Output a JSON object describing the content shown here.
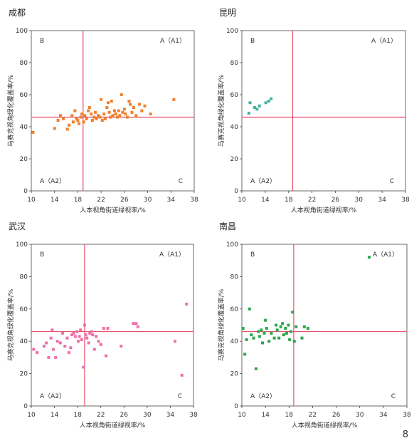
{
  "page_number": "8",
  "chart_data": [
    {
      "type": "scatter",
      "title": "成都",
      "xlabel": "人本视角街道绿视率/%",
      "ylabel": "马赛克视角绿化覆盖率/%",
      "xlim": [
        10,
        38
      ],
      "ylim": [
        0,
        100
      ],
      "xticks": [
        "10",
        "14",
        "18",
        "22",
        "26",
        "30",
        "34",
        "38"
      ],
      "yticks": [
        "0",
        "20",
        "40",
        "60",
        "80",
        "100"
      ],
      "color": "#f07f2a",
      "vline": 18.9,
      "hline": 46,
      "quadrant_labels": {
        "top_left": "B",
        "top_right": "A（A1）",
        "bottom_left": "A（A2）",
        "bottom_right": "C"
      },
      "points": [
        [
          10.3,
          36.5
        ],
        [
          14.0,
          39
        ],
        [
          14.6,
          44
        ],
        [
          15,
          47
        ],
        [
          15.5,
          45
        ],
        [
          16.2,
          38.5
        ],
        [
          16.5,
          41
        ],
        [
          17,
          47
        ],
        [
          17.2,
          43
        ],
        [
          17.5,
          50
        ],
        [
          17.8,
          45
        ],
        [
          18,
          44
        ],
        [
          18.2,
          42
        ],
        [
          18.5,
          46
        ],
        [
          18.7,
          48
        ],
        [
          19,
          43
        ],
        [
          19.2,
          47
        ],
        [
          19.5,
          45
        ],
        [
          19.8,
          50
        ],
        [
          20,
          52
        ],
        [
          20.3,
          48
        ],
        [
          20.5,
          44
        ],
        [
          20.8,
          46
        ],
        [
          21,
          49
        ],
        [
          21.2,
          45
        ],
        [
          21.5,
          47
        ],
        [
          21.8,
          46
        ],
        [
          22,
          57
        ],
        [
          22.2,
          44
        ],
        [
          22.5,
          48
        ],
        [
          22.7,
          45
        ],
        [
          23,
          52
        ],
        [
          23.2,
          55
        ],
        [
          23.4,
          49
        ],
        [
          23.6,
          46
        ],
        [
          23.8,
          56
        ],
        [
          24,
          47
        ],
        [
          24.3,
          50
        ],
        [
          24.5,
          48
        ],
        [
          24.8,
          46
        ],
        [
          25,
          50
        ],
        [
          25.2,
          47
        ],
        [
          25.5,
          60
        ],
        [
          25.7,
          49
        ],
        [
          26,
          51
        ],
        [
          26.2,
          48
        ],
        [
          26.5,
          46
        ],
        [
          26.8,
          56
        ],
        [
          27,
          54
        ],
        [
          27.3,
          49
        ],
        [
          27.6,
          52
        ],
        [
          28,
          47
        ],
        [
          28.6,
          54
        ],
        [
          29,
          50
        ],
        [
          29.5,
          53
        ],
        [
          30.5,
          48
        ],
        [
          34.5,
          57
        ]
      ]
    },
    {
      "type": "scatter",
      "title": "昆明",
      "xlabel": "人本视角街道绿视率/%",
      "ylabel": "马赛克视角绿化覆盖率/%",
      "xlim": [
        10,
        38
      ],
      "ylim": [
        0,
        100
      ],
      "xticks": [
        "10",
        "14",
        "18",
        "22",
        "26",
        "30",
        "34",
        "38"
      ],
      "yticks": [
        "0",
        "20",
        "40",
        "60",
        "80",
        "100"
      ],
      "color": "#3fb3a5",
      "vline": 18.7,
      "hline": 46,
      "quadrant_labels": {
        "top_left": "B",
        "top_right": "A（A1）",
        "bottom_left": "A（A2）",
        "bottom_right": "C"
      },
      "points": [
        [
          11.2,
          48.5
        ],
        [
          11.4,
          55
        ],
        [
          12.2,
          52
        ],
        [
          12.6,
          51
        ],
        [
          13.0,
          53
        ],
        [
          14.1,
          55
        ],
        [
          14.6,
          56
        ],
        [
          15.0,
          57.5
        ]
      ]
    },
    {
      "type": "scatter",
      "title": "武汉",
      "xlabel": "人本视角街道绿视率/%",
      "ylabel": "马赛克视角绿化覆盖率/%",
      "xlim": [
        10,
        38
      ],
      "ylim": [
        0,
        100
      ],
      "xticks": [
        "10",
        "14",
        "18",
        "22",
        "26",
        "30",
        "34",
        "38"
      ],
      "yticks": [
        "0",
        "20",
        "40",
        "60",
        "80",
        "100"
      ],
      "color": "#ee6fa8",
      "vline": 19.2,
      "hline": 46,
      "quadrant_labels": {
        "top_left": "B",
        "top_right": "A（A1）",
        "bottom_left": "A（A2）",
        "bottom_right": "C"
      },
      "points": [
        [
          10.4,
          35
        ],
        [
          11,
          33
        ],
        [
          12.2,
          37
        ],
        [
          12.6,
          39
        ],
        [
          13,
          30
        ],
        [
          13.4,
          42
        ],
        [
          13.6,
          47
        ],
        [
          13.8,
          35
        ],
        [
          14.2,
          30
        ],
        [
          14.5,
          40
        ],
        [
          15,
          39
        ],
        [
          15.4,
          45
        ],
        [
          15.8,
          37
        ],
        [
          16.2,
          42
        ],
        [
          16.5,
          33
        ],
        [
          16.8,
          36
        ],
        [
          17,
          44
        ],
        [
          17.3,
          45
        ],
        [
          17.6,
          43
        ],
        [
          17.9,
          46
        ],
        [
          18.1,
          40
        ],
        [
          18.3,
          43
        ],
        [
          18.5,
          47
        ],
        [
          18.7,
          41
        ],
        [
          19,
          24
        ],
        [
          19.2,
          50
        ],
        [
          19.4,
          44
        ],
        [
          19.6,
          42
        ],
        [
          19.9,
          39
        ],
        [
          20.1,
          45
        ],
        [
          20.4,
          46
        ],
        [
          20.6,
          44
        ],
        [
          20.9,
          35
        ],
        [
          21.2,
          43
        ],
        [
          21.6,
          40
        ],
        [
          22,
          38
        ],
        [
          22.5,
          48
        ],
        [
          22.9,
          31
        ],
        [
          23.2,
          48
        ],
        [
          25.5,
          37
        ],
        [
          27.6,
          51
        ],
        [
          28.1,
          51
        ],
        [
          28.4,
          49
        ],
        [
          34.8,
          40
        ],
        [
          36,
          19
        ],
        [
          36.8,
          63
        ]
      ]
    },
    {
      "type": "scatter",
      "title": "南昌",
      "xlabel": "人本视角街道绿视率/%",
      "ylabel": "马赛克视角绿化覆盖率/%",
      "xlim": [
        10,
        38
      ],
      "ylim": [
        0,
        100
      ],
      "xticks": [
        "10",
        "14",
        "18",
        "22",
        "26",
        "30",
        "34",
        "38"
      ],
      "yticks": [
        "0",
        "20",
        "40",
        "60",
        "80",
        "100"
      ],
      "color": "#2aa84a",
      "vline": 18.8,
      "hline": 46,
      "quadrant_labels": {
        "top_left": "B",
        "top_right": "A（A1）",
        "bottom_left": "A（A2）",
        "bottom_right": "C"
      },
      "points": [
        [
          10.2,
          48
        ],
        [
          10.5,
          32
        ],
        [
          10.8,
          41
        ],
        [
          11.3,
          60
        ],
        [
          11.6,
          44
        ],
        [
          12,
          42
        ],
        [
          12.4,
          23
        ],
        [
          12.8,
          46
        ],
        [
          13,
          43
        ],
        [
          13.3,
          47
        ],
        [
          13.5,
          39
        ],
        [
          13.8,
          45
        ],
        [
          14,
          53
        ],
        [
          14.2,
          48
        ],
        [
          14.6,
          40
        ],
        [
          15,
          45
        ],
        [
          15.5,
          42
        ],
        [
          15.8,
          50
        ],
        [
          16,
          47
        ],
        [
          16.3,
          42
        ],
        [
          16.6,
          49
        ],
        [
          16.9,
          51
        ],
        [
          17.1,
          44
        ],
        [
          17.4,
          48
        ],
        [
          17.6,
          45
        ],
        [
          17.9,
          50
        ],
        [
          18.1,
          41
        ],
        [
          18.3,
          46
        ],
        [
          18.6,
          58
        ],
        [
          18.9,
          40
        ],
        [
          19.2,
          49
        ],
        [
          20.2,
          42
        ],
        [
          20.6,
          49
        ],
        [
          21.2,
          48
        ],
        [
          31.6,
          92
        ]
      ]
    }
  ]
}
